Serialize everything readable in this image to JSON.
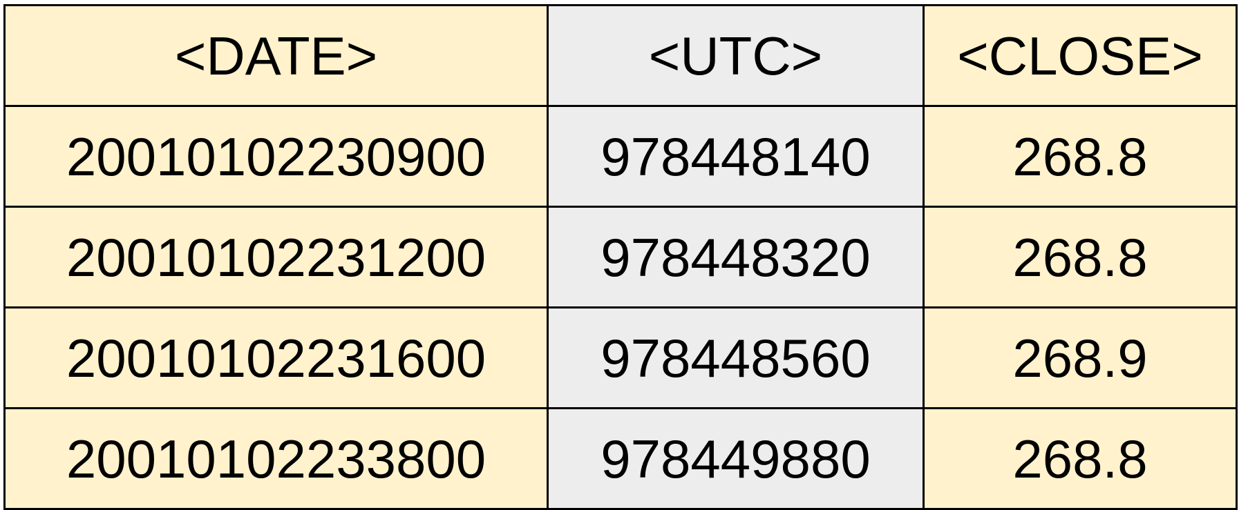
{
  "table": {
    "headers": {
      "date": "<DATE>",
      "utc": "<UTC>",
      "close": "<CLOSE>"
    },
    "rows": [
      {
        "date": "20010102230900",
        "utc": "978448140",
        "close": "268.8"
      },
      {
        "date": "20010102231200",
        "utc": "978448320",
        "close": "268.8"
      },
      {
        "date": "20010102231600",
        "utc": "978448560",
        "close": "268.9"
      },
      {
        "date": "20010102233800",
        "utc": "978449880",
        "close": "268.8"
      }
    ]
  },
  "colors": {
    "date_column": "#fff2cc",
    "utc_column": "#ededed",
    "close_column": "#fff2cc",
    "border": "#000000"
  }
}
